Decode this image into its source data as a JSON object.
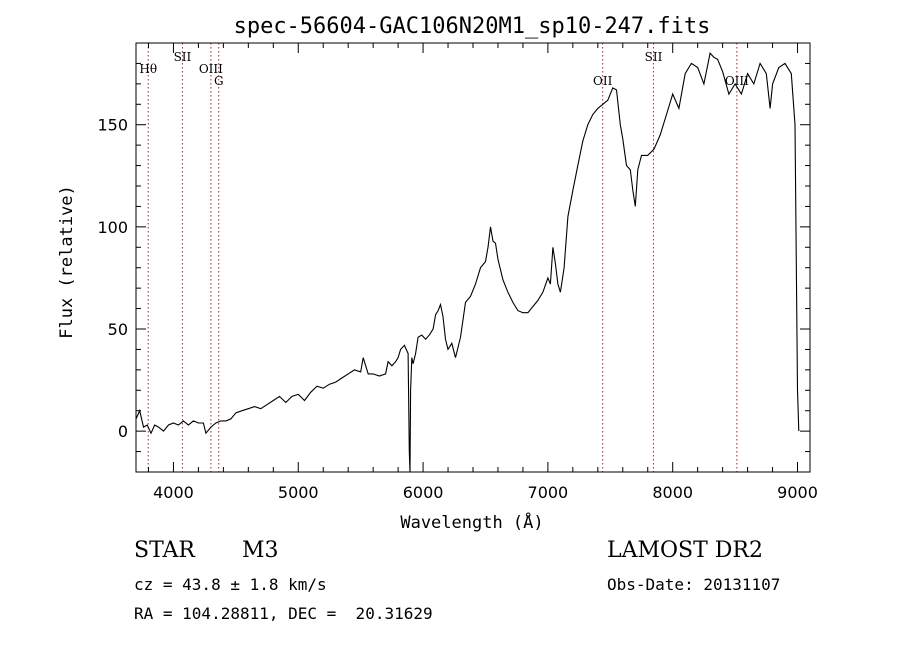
{
  "chart_data": {
    "type": "line",
    "title": "spec-56604-GAC106N20M1_sp10-247.fits",
    "xlabel": "Wavelength (Å)",
    "ylabel": "Flux (relative)",
    "xlim": [
      3700,
      9100
    ],
    "ylim": [
      -20,
      190
    ],
    "xticks": [
      4000,
      5000,
      6000,
      7000,
      8000,
      9000
    ],
    "yticks": [
      0,
      50,
      100,
      150
    ],
    "grid": false,
    "line_color": "#000000",
    "series": [
      {
        "x": [
          3700,
          3730,
          3760,
          3790,
          3820,
          3850,
          3880,
          3920,
          3960,
          4000,
          4040,
          4080,
          4120,
          4160,
          4200,
          4240,
          4260,
          4300,
          4340,
          4380,
          4420,
          4460,
          4500,
          4550,
          4600,
          4650,
          4700,
          4750,
          4800,
          4850,
          4900,
          4950,
          5000,
          5050,
          5100,
          5150,
          5200,
          5250,
          5300,
          5350,
          5400,
          5450,
          5500,
          5520,
          5560,
          5600,
          5650,
          5700,
          5720,
          5750,
          5780,
          5800,
          5820,
          5850,
          5880,
          5890,
          5895,
          5900,
          5910,
          5920,
          5940,
          5960,
          5990,
          6020,
          6050,
          6080,
          6100,
          6120,
          6140,
          6160,
          6180,
          6200,
          6230,
          6260,
          6300,
          6340,
          6380,
          6420,
          6460,
          6500,
          6520,
          6540,
          6560,
          6580,
          6600,
          6640,
          6680,
          6720,
          6760,
          6800,
          6840,
          6880,
          6920,
          6960,
          7000,
          7020,
          7040,
          7060,
          7080,
          7100,
          7130,
          7160,
          7200,
          7240,
          7280,
          7320,
          7360,
          7400,
          7440,
          7480,
          7520,
          7550,
          7580,
          7600,
          7630,
          7660,
          7680,
          7700,
          7720,
          7750,
          7800,
          7850,
          7900,
          7950,
          8000,
          8050,
          8100,
          8150,
          8200,
          8250,
          8300,
          8330,
          8360,
          8400,
          8450,
          8500,
          8550,
          8600,
          8650,
          8700,
          8750,
          8780,
          8800,
          8850,
          8900,
          8950,
          8980,
          9000,
          9010
        ],
        "y": [
          6,
          10,
          2,
          3,
          -1,
          3,
          2,
          0,
          3,
          4,
          3,
          5,
          3,
          5,
          4,
          4,
          -1,
          2,
          4,
          5,
          5,
          6,
          9,
          10,
          11,
          12,
          11,
          13,
          15,
          17,
          14,
          17,
          18,
          15,
          19,
          22,
          21,
          23,
          24,
          26,
          28,
          30,
          29,
          36,
          28,
          28,
          27,
          28,
          34,
          32,
          34,
          36,
          40,
          42,
          38,
          -10,
          -20,
          20,
          36,
          33,
          38,
          46,
          47,
          45,
          47,
          50,
          57,
          59,
          62,
          56,
          45,
          40,
          43,
          36,
          46,
          63,
          66,
          72,
          80,
          83,
          90,
          100,
          93,
          92,
          84,
          74,
          68,
          63,
          59,
          58,
          58,
          61,
          64,
          68,
          75,
          72,
          90,
          82,
          72,
          68,
          80,
          105,
          118,
          130,
          142,
          150,
          155,
          158,
          160,
          162,
          168,
          167,
          150,
          143,
          130,
          128,
          118,
          110,
          128,
          135,
          135,
          138,
          145,
          155,
          165,
          158,
          175,
          180,
          178,
          170,
          185,
          183,
          182,
          176,
          165,
          170,
          165,
          175,
          170,
          180,
          175,
          158,
          170,
          178,
          180,
          175,
          150,
          20,
          0
        ]
      }
    ],
    "line_markers": [
      {
        "label": "Hθ",
        "wavelength": 3798,
        "row": 1
      },
      {
        "label": "SII",
        "wavelength": 4072,
        "row": 0
      },
      {
        "label": "OIII",
        "wavelength": 4300,
        "row": 1
      },
      {
        "label": "G",
        "wavelength": 4363,
        "row": 2
      },
      {
        "label": "OII",
        "wavelength": 7439,
        "row": 2
      },
      {
        "label": "SII",
        "wavelength": 7846,
        "row": 0
      },
      {
        "label": "OIII",
        "wavelength": 8514,
        "row": 2
      }
    ],
    "marker_color": "#b22222"
  },
  "info": {
    "object_class": "STAR",
    "subclass": "M3",
    "survey": "LAMOST DR2",
    "redshift": "cz = 43.8 ± 1.8 km/s",
    "obs_date": "Obs-Date: 20131107",
    "coords": "RA = 104.28811, DEC =  20.31629"
  }
}
